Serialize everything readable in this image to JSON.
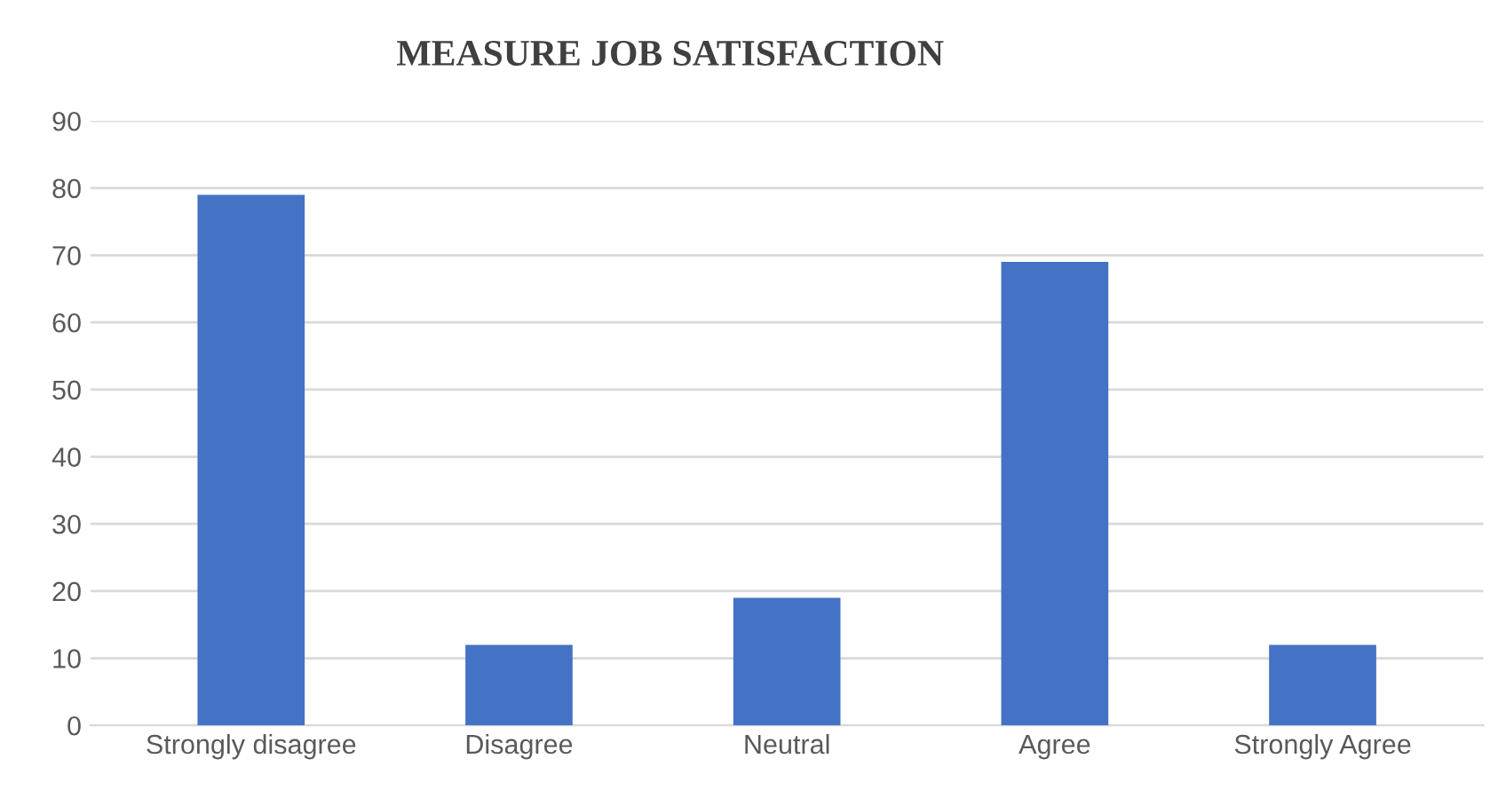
{
  "chart_data": {
    "type": "bar",
    "title": "MEASURE JOB SATISFACTION",
    "categories": [
      "Strongly disagree",
      "Disagree",
      "Neutral",
      "Agree",
      "Strongly Agree"
    ],
    "values": [
      79,
      12,
      19,
      69,
      12
    ],
    "color": "#4472c4",
    "ylim": [
      0,
      90
    ],
    "yticks": [
      0,
      10,
      20,
      30,
      40,
      50,
      60,
      70,
      80,
      90
    ],
    "grid": "y"
  }
}
